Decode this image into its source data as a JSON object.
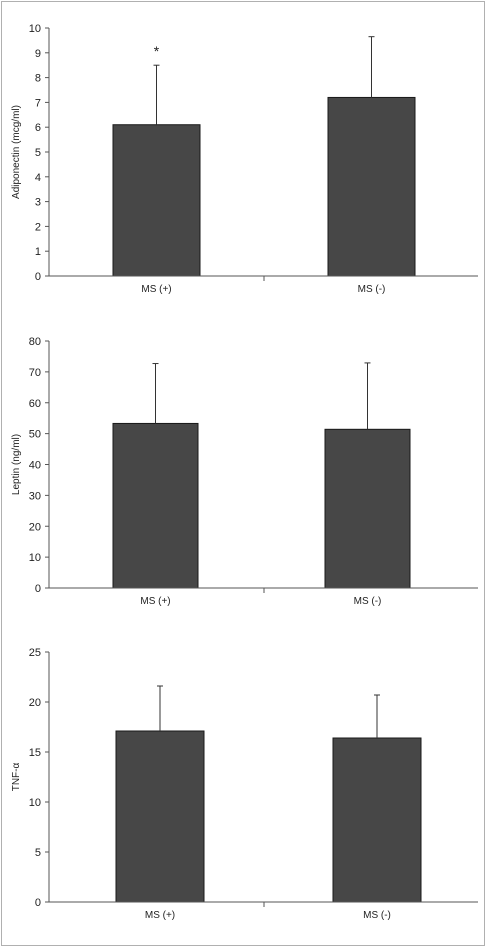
{
  "chart_data": [
    {
      "type": "bar",
      "categories": [
        "MS (+)",
        "MS (-)"
      ],
      "values": [
        6.1,
        7.2
      ],
      "error": [
        2.4,
        2.45
      ],
      "ylabel": "Adiponectin (mcg/ml)",
      "xlabel": "",
      "ylim": [
        0,
        10
      ],
      "yticks": [
        0,
        1,
        2,
        3,
        4,
        5,
        6,
        7,
        8,
        9,
        10
      ],
      "annotations": [
        {
          "category": "MS (+)",
          "text": "*"
        }
      ],
      "grid": false,
      "bar_color": "#474747"
    },
    {
      "type": "bar",
      "categories": [
        "MS (+)",
        "MS (-)"
      ],
      "values": [
        53.3,
        51.4
      ],
      "error": [
        19.4,
        21.5
      ],
      "ylabel": "Leptin (ng/ml)",
      "xlabel": "",
      "ylim": [
        0,
        80
      ],
      "yticks": [
        0,
        10,
        20,
        30,
        40,
        50,
        60,
        70,
        80
      ],
      "annotations": [],
      "grid": false,
      "bar_color": "#474747"
    },
    {
      "type": "bar",
      "categories": [
        "MS (+)",
        "MS (-)"
      ],
      "values": [
        17.1,
        16.4
      ],
      "error": [
        4.5,
        4.3
      ],
      "ylabel": "TNF-α",
      "xlabel": "",
      "ylim": [
        0,
        25
      ],
      "yticks": [
        0,
        5,
        10,
        15,
        20,
        25
      ],
      "annotations": [],
      "grid": false,
      "bar_color": "#474747"
    }
  ]
}
